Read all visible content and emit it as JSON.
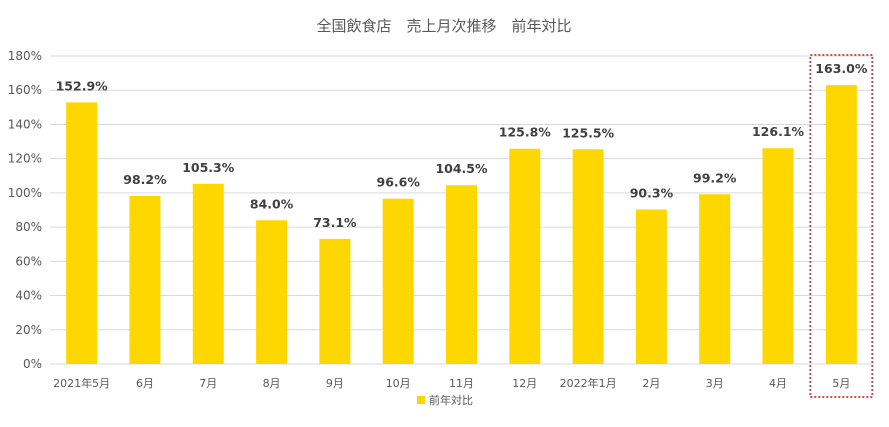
{
  "chart_data": {
    "type": "bar",
    "title": "全国飲食店　売上月次推移　前年対比",
    "categories": [
      "2021年5月",
      "6月",
      "7月",
      "8月",
      "9月",
      "10月",
      "11月",
      "12月",
      "2022年1月",
      "2月",
      "3月",
      "4月",
      "5月"
    ],
    "series": [
      {
        "name": "前年対比",
        "values": [
          152.9,
          98.2,
          105.3,
          84.0,
          73.1,
          96.6,
          104.5,
          125.8,
          125.5,
          90.3,
          99.2,
          126.1,
          163.0
        ],
        "data_labels": [
          "152.9%",
          "98.2%",
          "105.3%",
          "84.0%",
          "73.1%",
          "96.6%",
          "104.5%",
          "125.8%",
          "125.5%",
          "90.3%",
          "99.2%",
          "126.1%",
          "163.0%"
        ]
      }
    ],
    "ylim": [
      0,
      180
    ],
    "yticks": [
      "0%",
      "20%",
      "40%",
      "60%",
      "80%",
      "100%",
      "120%",
      "140%",
      "160%",
      "180%"
    ],
    "grid": true,
    "legend_position": "bottom",
    "highlight_category": "5月",
    "colors": {
      "bar": "#FFD700",
      "highlight_border": "#C0504D",
      "grid": "#D9D9D9",
      "text": "#595959"
    }
  }
}
